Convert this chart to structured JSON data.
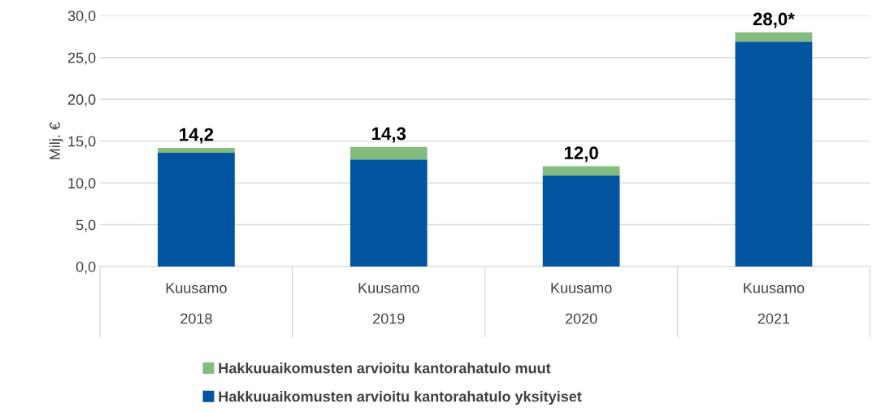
{
  "chart_data": {
    "type": "bar",
    "stacked": true,
    "ylabel": "Milj. €",
    "categories": [
      "Kuusamo\n2018",
      "Kuusamo\n2019",
      "Kuusamo\n2020",
      "Kuusamo\n2021"
    ],
    "series": [
      {
        "name": "Hakkuuaikomusten arvioitu kantorahatulo yksityiset",
        "color": "#0054a0",
        "values": [
          13.6,
          12.8,
          10.9,
          26.9
        ]
      },
      {
        "name": "Hakkuuaikomusten arvioitu kantorahatulo muut",
        "color": "#84bc80",
        "values": [
          0.6,
          1.5,
          1.1,
          1.1
        ]
      }
    ],
    "totals": [
      "14,2",
      "14,3",
      "12,0",
      "28,0*"
    ],
    "ylim": [
      0,
      30
    ],
    "yticks": [
      {
        "value": 0,
        "label": "0,0"
      },
      {
        "value": 5,
        "label": "5,0"
      },
      {
        "value": 10,
        "label": "10,0"
      },
      {
        "value": 15,
        "label": "15,0"
      },
      {
        "value": 20,
        "label": "20,0"
      },
      {
        "value": 25,
        "label": "25,0"
      },
      {
        "value": 30,
        "label": "30,0"
      }
    ],
    "grid": "y",
    "legend": "bottom"
  }
}
